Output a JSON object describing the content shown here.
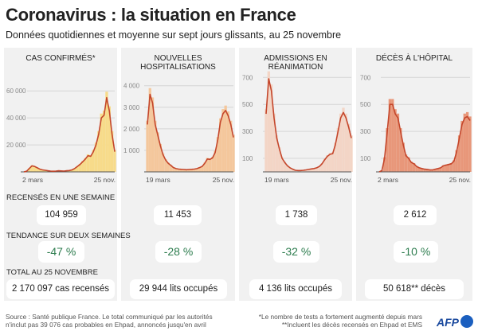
{
  "title": "Coronavirus : la situation en France",
  "subtitle": "Données quotidiennes et moyenne sur sept jours glissants, au 25 novembre",
  "labels": {
    "week": "RECENSÉS EN UNE SEMAINE",
    "trend": "TENDANCE SUR DEUX SEMAINES",
    "total": "TOTAL AU 25 NOVEMBRE"
  },
  "panels": [
    {
      "title": "CAS CONFIRMÉS*",
      "week": "104 959",
      "trend": "-47 %",
      "total": "2 170 097 cas recensés"
    },
    {
      "title": "NOUVELLES HOSPITALISATIONS",
      "week": "11 453",
      "trend": "-28 %",
      "total": "29 944 lits occupés"
    },
    {
      "title": "ADMISSIONS EN RÉANIMATION",
      "week": "1 738",
      "trend": "-32 %",
      "total": "4 136 lits occupés"
    },
    {
      "title": "DÉCÈS À L'HÔPITAL",
      "week": "2 612",
      "trend": "-10 %",
      "total": "50 618** décès"
    }
  ],
  "footer": {
    "source1": "Source : Santé publique France. Le total communiqué par les autorités",
    "source2": "n'inclut pas 39 076 cas probables en Ehpad, annoncés jusqu'en avril",
    "note1": "*Le nombre de tests a fortement augmenté depuis mars",
    "note2": "**Incluent les décès recensés en Ehpad et EMS",
    "logo": "AFP"
  },
  "chart_data": [
    {
      "type": "area",
      "title": "CAS CONFIRMÉS*",
      "x_labels": [
        "2 mars",
        "25 nov."
      ],
      "yticks": [
        20000,
        40000,
        60000
      ],
      "ytick_labels": [
        "20 000",
        "40 000",
        "60 000"
      ],
      "ylim": [
        0,
        79000
      ],
      "fill": "#f7db8a",
      "line": "#c4462b",
      "values": [
        0,
        500,
        2500,
        4500,
        4000,
        3000,
        2000,
        1500,
        1200,
        800,
        600,
        500,
        600,
        800,
        700,
        600,
        800,
        1000,
        1500,
        2500,
        4000,
        5500,
        7500,
        9500,
        12000,
        11500,
        15000,
        20000,
        28000,
        40000,
        42000,
        55000,
        45000,
        28000,
        15000
      ]
    },
    {
      "type": "area",
      "title": "NOUVELLES HOSPITALISATIONS",
      "x_labels": [
        "19 mars",
        "25 nov."
      ],
      "yticks": [
        1000,
        2000,
        3000,
        4000
      ],
      "ytick_labels": [
        "1 000",
        "2 000",
        "3 000",
        "4 000"
      ],
      "ylim": [
        0,
        4950
      ],
      "fill": "#f4c79c",
      "line": "#c4462b",
      "values": [
        2200,
        3600,
        3200,
        2200,
        1700,
        1200,
        800,
        550,
        400,
        300,
        200,
        150,
        130,
        120,
        110,
        100,
        110,
        120,
        130,
        150,
        200,
        250,
        400,
        600,
        580,
        650,
        900,
        1500,
        2300,
        2700,
        2850,
        2600,
        2200,
        1600
      ]
    },
    {
      "type": "area",
      "title": "ADMISSIONS EN RÉANIMATION",
      "x_labels": [
        "19 mars",
        "25 nov."
      ],
      "yticks": [
        100,
        300,
        500,
        700
      ],
      "ytick_labels": [
        "100",
        "300",
        "500",
        "700"
      ],
      "ylim": [
        0,
        790
      ],
      "fill": "#f3d5c6",
      "line": "#c4462b",
      "values": [
        430,
        690,
        600,
        400,
        250,
        170,
        100,
        70,
        45,
        30,
        20,
        12,
        10,
        10,
        12,
        15,
        18,
        22,
        25,
        30,
        40,
        60,
        90,
        115,
        130,
        135,
        200,
        300,
        400,
        440,
        400,
        330,
        250
      ]
    },
    {
      "type": "area",
      "title": "DÉCÈS À L'HÔPITAL",
      "x_labels": [
        "2 mars",
        "25 nov."
      ],
      "yticks": [
        100,
        300,
        500,
        700
      ],
      "ytick_labels": [
        "100",
        "300",
        "500",
        "700"
      ],
      "ylim": [
        0,
        790
      ],
      "fill": "#e8977a",
      "line": "#c4462b",
      "values": [
        0,
        10,
        100,
        300,
        500,
        500,
        430,
        400,
        300,
        200,
        120,
        100,
        70,
        60,
        40,
        30,
        25,
        20,
        18,
        15,
        15,
        20,
        25,
        30,
        45,
        50,
        55,
        60,
        80,
        150,
        250,
        350,
        400,
        410,
        380
      ]
    }
  ]
}
